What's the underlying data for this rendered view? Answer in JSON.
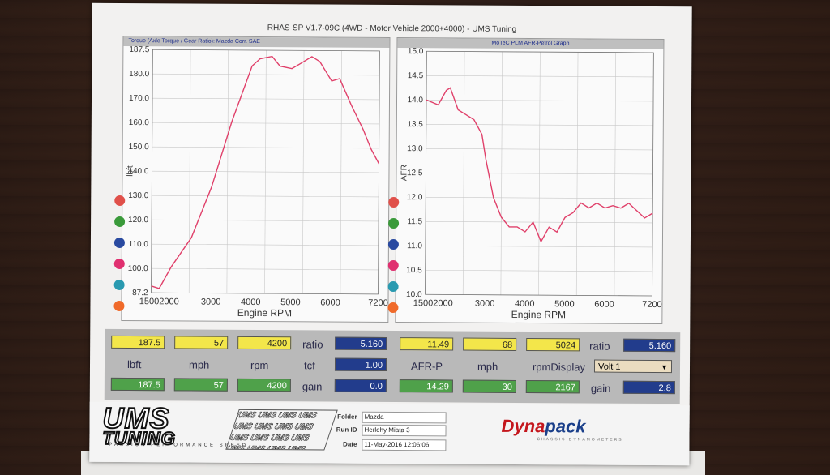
{
  "header": {
    "title": "RHAS-SP V1.7-09C  (4WD - Motor Vehicle 2000+4000) - UMS Tuning"
  },
  "left_panel": {
    "header": "Torque (Axle Torque / Gear Ratio): Mazda   Corr. SAE",
    "ylabel": "lbft",
    "xlabel": "Engine RPM",
    "yticks": [
      "187.5",
      "180.0",
      "170.0",
      "160.0",
      "150.0",
      "140.0",
      "130.0",
      "120.0",
      "110.0",
      "100.0",
      "87.2"
    ],
    "xticks": [
      "15002000",
      "3000",
      "4000",
      "5000",
      "6000",
      "7200"
    ],
    "line_color": "#e0406a"
  },
  "right_panel": {
    "header": "MoTeC PLM AFR-Petrol Graph",
    "ylabel": "AFR",
    "xlabel": "Engine RPM",
    "yticks": [
      "15.0",
      "14.5",
      "14.0",
      "13.5",
      "13.0",
      "12.5",
      "12.0",
      "11.5",
      "11.0",
      "10.5",
      "10.0"
    ],
    "xticks": [
      "15002000",
      "3000",
      "4000",
      "5000",
      "6000",
      "7200"
    ],
    "line_color": "#e0406a"
  },
  "legend_dots": [
    "#e0504a",
    "#3a9a3a",
    "#2a4aa0",
    "#e03070",
    "#2a9ab0",
    "#f06a2a"
  ],
  "chart_data": [
    {
      "type": "line",
      "title": "Torque (Axle Torque / Gear Ratio): Mazda   Corr. SAE",
      "xlabel": "Engine RPM",
      "ylabel": "lbft",
      "xlim": [
        1500,
        7200
      ],
      "ylim": [
        87.2,
        187.5
      ],
      "grid": true,
      "x": [
        1500,
        1700,
        2000,
        2500,
        3000,
        3500,
        4000,
        4200,
        4500,
        4700,
        5000,
        5200,
        5500,
        5700,
        6000,
        6200,
        6500,
        6800,
        7000,
        7200
      ],
      "y": [
        90,
        89,
        98,
        110,
        131,
        158,
        181,
        184,
        185,
        181,
        180,
        182,
        185,
        183,
        175,
        176,
        165,
        155,
        147,
        141
      ]
    },
    {
      "type": "line",
      "title": "MoTeC PLM AFR-Petrol Graph",
      "xlabel": "Engine RPM",
      "ylabel": "AFR",
      "xlim": [
        1500,
        7200
      ],
      "ylim": [
        10.0,
        15.0
      ],
      "grid": true,
      "x": [
        1500,
        1800,
        2000,
        2100,
        2300,
        2500,
        2700,
        2900,
        3000,
        3200,
        3400,
        3600,
        3800,
        4000,
        4200,
        4400,
        4600,
        4800,
        5000,
        5200,
        5400,
        5600,
        5800,
        6000,
        6200,
        6400,
        6600,
        6800,
        7000,
        7200
      ],
      "y": [
        14.0,
        13.9,
        14.2,
        14.25,
        13.8,
        13.7,
        13.6,
        13.3,
        12.8,
        12.0,
        11.6,
        11.4,
        11.4,
        11.3,
        11.5,
        11.1,
        11.4,
        11.3,
        11.6,
        11.7,
        11.9,
        11.8,
        11.9,
        11.8,
        11.85,
        11.8,
        11.9,
        11.75,
        11.6,
        11.7
      ]
    }
  ],
  "readout": {
    "left_top": [
      "187.5",
      "57",
      "4200"
    ],
    "left_mid_labels": [
      "lbft",
      "mph",
      "rpm"
    ],
    "left_bottom": [
      "187.5",
      "57",
      "4200"
    ],
    "right_top": [
      "11.49",
      "68",
      "5024"
    ],
    "right_mid_labels": [
      "AFR-P",
      "mph",
      "rpmDisplay"
    ],
    "right_bottom": [
      "14.29",
      "30",
      "2167"
    ],
    "ratio_label": "ratio",
    "tcf_label": "tcf",
    "gain_label": "gain",
    "ratio_l": "5.160",
    "tcf_l": "1.00",
    "gain_l": "0.0",
    "ratio_r": "5.160",
    "gain_r": "2.8",
    "dropdown": "Volt 1"
  },
  "footer": {
    "ums": "UMS",
    "tuning": "TUNING",
    "ums_sub": "PASSION  PERFORMANCE  SPEED",
    "pattern": "UMS UMS UMS UMS UMS UMS UMS UMS UMS UMS UMS UMS UMS UMS UMS UMS",
    "folder_label": "Folder",
    "folder": "Mazda",
    "runid_label": "Run ID",
    "runid": "Herlehy Miata 3",
    "date_label": "Date",
    "date": "11-May-2016   12:06:06",
    "dyna": "Dyna",
    "pack": "pack",
    "dyna_sub": "CHASSIS DYNAMOMETERS"
  }
}
